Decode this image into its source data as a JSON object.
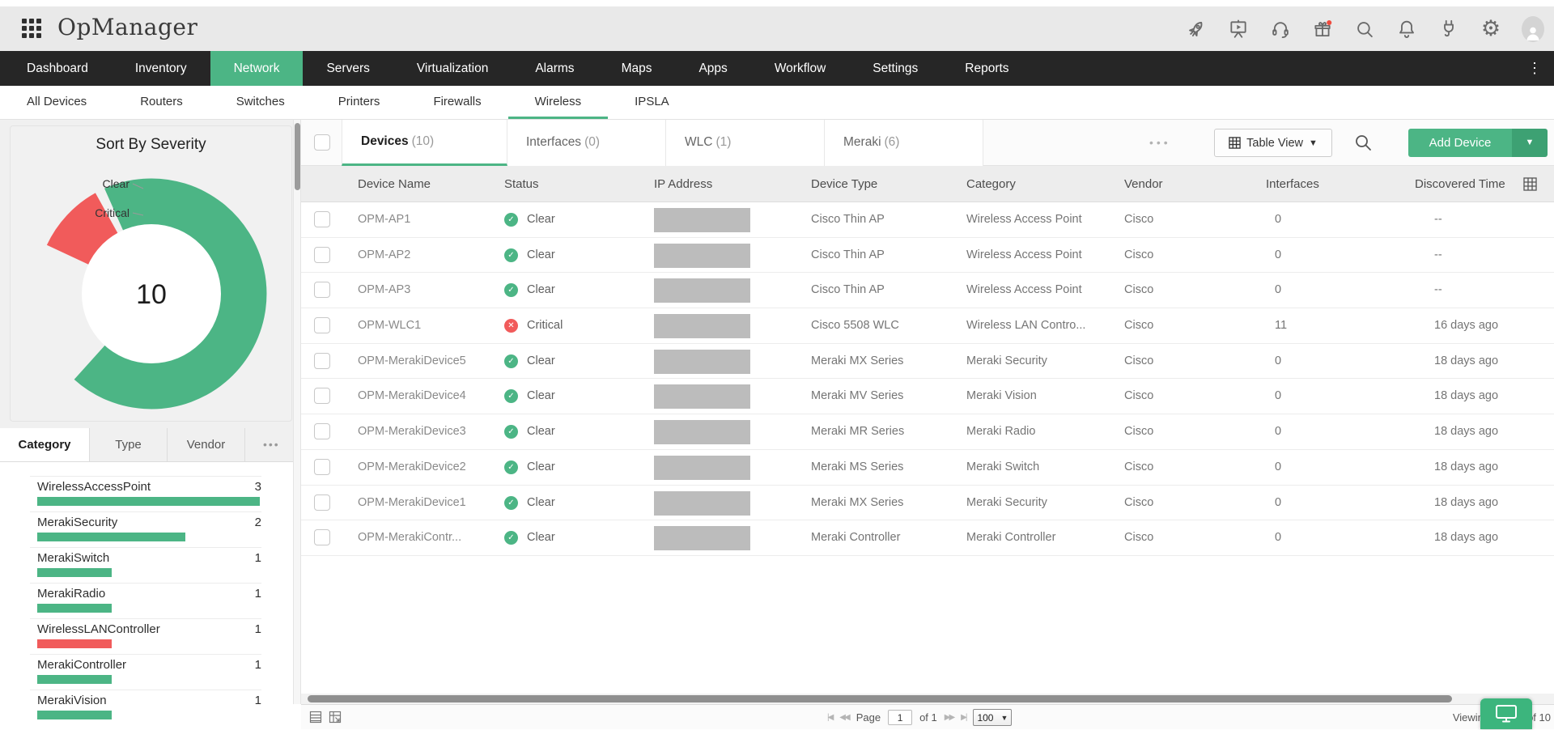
{
  "colors": {
    "accent_green": "#4cb585",
    "critical_red": "#f15b5b",
    "nav_dark": "#262626"
  },
  "header": {
    "product_name": "OpManager",
    "icons": [
      "apps-grid-icon",
      "rocket-icon",
      "training-video-icon",
      "support-headset-icon",
      "gift-icon",
      "search-icon",
      "notifications-bell-icon",
      "plug-icon",
      "settings-gear-icon",
      "user-avatar"
    ]
  },
  "nav": {
    "items": [
      "Dashboard",
      "Inventory",
      "Network",
      "Servers",
      "Virtualization",
      "Alarms",
      "Maps",
      "Apps",
      "Workflow",
      "Settings",
      "Reports"
    ],
    "active": "Network",
    "overflow_icon": "kebab-menu-icon"
  },
  "subnav": {
    "items": [
      "All Devices",
      "Routers",
      "Switches",
      "Printers",
      "Firewalls",
      "Wireless",
      "IPSLA"
    ],
    "active": "Wireless"
  },
  "sidebar": {
    "severity_chart": {
      "title": "Sort By Severity",
      "total": "10",
      "segments": [
        {
          "label": "Clear",
          "value": 9,
          "color": "#4cb585"
        },
        {
          "label": "Critical",
          "value": 1,
          "color": "#f15b5b"
        }
      ]
    },
    "facet_tabs": {
      "items": [
        "Category",
        "Type",
        "Vendor"
      ],
      "active": "Category",
      "more_dots": "•••"
    },
    "category_list": [
      {
        "label": "WirelessAccessPoint",
        "count": "3",
        "color": "#4cb585"
      },
      {
        "label": "MerakiSecurity",
        "count": "2",
        "color": "#4cb585"
      },
      {
        "label": "MerakiSwitch",
        "count": "1",
        "color": "#4cb585"
      },
      {
        "label": "MerakiRadio",
        "count": "1",
        "color": "#4cb585"
      },
      {
        "label": "WirelessLANController",
        "count": "1",
        "color": "#f15b5b"
      },
      {
        "label": "MerakiController",
        "count": "1",
        "color": "#4cb585"
      },
      {
        "label": "MerakiVision",
        "count": "1",
        "color": "#4cb585"
      }
    ]
  },
  "main": {
    "tabs": [
      {
        "label": "Devices",
        "count": "(10)",
        "active": true
      },
      {
        "label": "Interfaces",
        "count": "(0)",
        "active": false
      },
      {
        "label": "WLC",
        "count": "(1)",
        "active": false
      },
      {
        "label": "Meraki",
        "count": "(6)",
        "active": false
      }
    ],
    "toolbar": {
      "more_dots": "•••",
      "table_view_label": "Table View",
      "add_device_label": "Add Device"
    },
    "table": {
      "columns": [
        "Device Name",
        "Status",
        "IP Address",
        "Device Type",
        "Category",
        "Vendor",
        "Interfaces",
        "Discovered Time"
      ],
      "rows": [
        {
          "name": "OPM-AP1",
          "status": "Clear",
          "type": "Cisco Thin AP",
          "category": "Wireless Access Point",
          "vendor": "Cisco",
          "interfaces": "0",
          "discovered": "--"
        },
        {
          "name": "OPM-AP2",
          "status": "Clear",
          "type": "Cisco Thin AP",
          "category": "Wireless Access Point",
          "vendor": "Cisco",
          "interfaces": "0",
          "discovered": "--"
        },
        {
          "name": "OPM-AP3",
          "status": "Clear",
          "type": "Cisco Thin AP",
          "category": "Wireless Access Point",
          "vendor": "Cisco",
          "interfaces": "0",
          "discovered": "--"
        },
        {
          "name": "OPM-WLC1",
          "status": "Critical",
          "type": "Cisco 5508 WLC",
          "category": "Wireless LAN Contro...",
          "vendor": "Cisco",
          "interfaces": "11",
          "discovered": "16 days ago"
        },
        {
          "name": "OPM-MerakiDevice5",
          "status": "Clear",
          "type": "Meraki MX Series",
          "category": "Meraki Security",
          "vendor": "Cisco",
          "interfaces": "0",
          "discovered": "18 days ago"
        },
        {
          "name": "OPM-MerakiDevice4",
          "status": "Clear",
          "type": "Meraki MV Series",
          "category": "Meraki Vision",
          "vendor": "Cisco",
          "interfaces": "0",
          "discovered": "18 days ago"
        },
        {
          "name": "OPM-MerakiDevice3",
          "status": "Clear",
          "type": "Meraki MR Series",
          "category": "Meraki Radio",
          "vendor": "Cisco",
          "interfaces": "0",
          "discovered": "18 days ago"
        },
        {
          "name": "OPM-MerakiDevice2",
          "status": "Clear",
          "type": "Meraki MS Series",
          "category": "Meraki Switch",
          "vendor": "Cisco",
          "interfaces": "0",
          "discovered": "18 days ago"
        },
        {
          "name": "OPM-MerakiDevice1",
          "status": "Clear",
          "type": "Meraki MX Series",
          "category": "Meraki Security",
          "vendor": "Cisco",
          "interfaces": "0",
          "discovered": "18 days ago"
        },
        {
          "name": "OPM-MerakiContr...",
          "status": "Clear",
          "type": "Meraki Controller",
          "category": "Meraki Controller",
          "vendor": "Cisco",
          "interfaces": "0",
          "discovered": "18 days ago"
        }
      ]
    },
    "pagination": {
      "page_label": "Page",
      "page_value": "1",
      "of_label": "of 1",
      "page_size": "100",
      "summary": "Viewing 1 to 10 of 10"
    }
  },
  "chart_data": [
    {
      "type": "pie",
      "title": "Sort By Severity",
      "labels": [
        "Clear",
        "Critical"
      ],
      "values": [
        9,
        1
      ],
      "colors": [
        "#4cb585",
        "#f15b5b"
      ],
      "center_total": 10,
      "legend_position": "left"
    },
    {
      "type": "bar",
      "title": "Category",
      "orientation": "horizontal",
      "categories": [
        "WirelessAccessPoint",
        "MerakiSecurity",
        "MerakiSwitch",
        "MerakiRadio",
        "WirelessLANController",
        "MerakiController",
        "MerakiVision"
      ],
      "values": [
        3,
        2,
        1,
        1,
        1,
        1,
        1
      ],
      "colors": [
        "#4cb585",
        "#4cb585",
        "#4cb585",
        "#4cb585",
        "#f15b5b",
        "#4cb585",
        "#4cb585"
      ],
      "xlim": [
        0,
        3
      ]
    }
  ]
}
